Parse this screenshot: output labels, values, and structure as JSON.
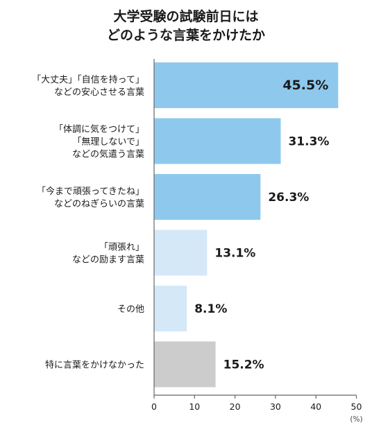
{
  "chart_data": {
    "type": "bar",
    "orientation": "horizontal",
    "title_lines": [
      "大学受験の試験前日には",
      "どのような言葉をかけたか"
    ],
    "categories": [
      [
        "「大丈夫」「自信を持って」",
        "などの安心させる言葉"
      ],
      [
        "「体調に気をつけて」",
        "「無理しないで」",
        "などの気遣う言葉"
      ],
      [
        "「今まで頑張ってきたね」",
        "などのねぎらいの言葉"
      ],
      [
        "「頑張れ」",
        "などの励ます言葉"
      ],
      [
        "その他"
      ],
      [
        "特に言葉をかけなかった"
      ]
    ],
    "values": [
      45.5,
      31.3,
      26.3,
      13.1,
      8.1,
      15.2
    ],
    "value_labels": [
      "45.5%",
      "31.3%",
      "26.3%",
      "13.1%",
      "8.1%",
      "15.2%"
    ],
    "bar_colors": [
      "#8ec9ed",
      "#8ec9ed",
      "#8ec9ed",
      "#d4e8f8",
      "#d4e8f8",
      "#cccccc"
    ],
    "x_ticks": [
      0,
      10,
      20,
      30,
      40,
      50
    ],
    "x_unit": "(%)",
    "xlim": [
      0,
      50
    ],
    "grid": false
  }
}
